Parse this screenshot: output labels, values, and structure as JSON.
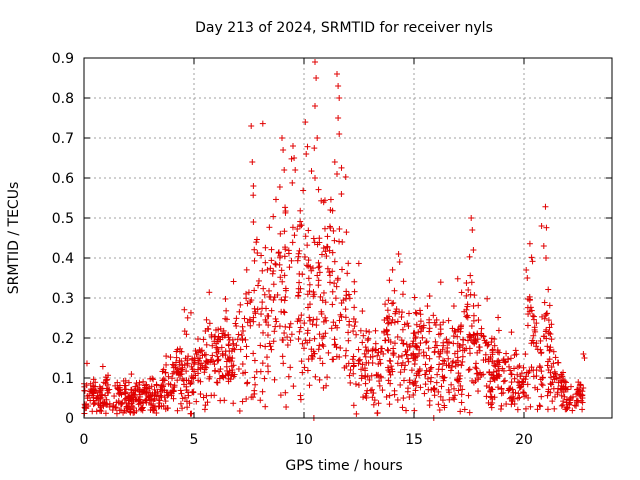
{
  "chart_data": {
    "type": "scatter",
    "title": "Day 213 of 2024, SRMTID for receiver nyls",
    "xlabel": "GPS time / hours",
    "ylabel": "SRMTID / TECUs",
    "xlim": [
      0,
      24
    ],
    "ylim": [
      0,
      0.9
    ],
    "x_ticks": [
      0,
      5,
      10,
      15,
      20
    ],
    "y_ticks": [
      0,
      0.1,
      0.2,
      0.3,
      0.4,
      0.5,
      0.6,
      0.7,
      0.8,
      0.9
    ],
    "x_tick_labels": [
      "0",
      "5",
      "10",
      "15",
      "20"
    ],
    "y_tick_labels": [
      "0",
      "0.1",
      "0.2",
      "0.3",
      "0.4",
      "0.5",
      "0.6",
      "0.7",
      "0.8",
      "0.9"
    ],
    "grid": true,
    "marker": "+",
    "series_color": "#e00000",
    "series": [
      {
        "name": "SRMTID",
        "profile": [
          {
            "x": 0.0,
            "y": 0.05
          },
          {
            "x": 1.0,
            "y": 0.055
          },
          {
            "x": 2.0,
            "y": 0.048
          },
          {
            "x": 3.0,
            "y": 0.055
          },
          {
            "x": 4.0,
            "y": 0.08
          },
          {
            "x": 4.5,
            "y": 0.12
          },
          {
            "x": 5.0,
            "y": 0.1
          },
          {
            "x": 6.0,
            "y": 0.15
          },
          {
            "x": 7.0,
            "y": 0.18
          },
          {
            "x": 7.5,
            "y": 0.22
          },
          {
            "x": 8.0,
            "y": 0.26
          },
          {
            "x": 8.5,
            "y": 0.3
          },
          {
            "x": 9.0,
            "y": 0.31
          },
          {
            "x": 9.5,
            "y": 0.33
          },
          {
            "x": 10.0,
            "y": 0.34
          },
          {
            "x": 10.5,
            "y": 0.33
          },
          {
            "x": 11.0,
            "y": 0.3
          },
          {
            "x": 11.5,
            "y": 0.28
          },
          {
            "x": 12.0,
            "y": 0.25
          },
          {
            "x": 12.5,
            "y": 0.14
          },
          {
            "x": 13.0,
            "y": 0.12
          },
          {
            "x": 13.5,
            "y": 0.12
          },
          {
            "x": 14.0,
            "y": 0.2
          },
          {
            "x": 14.5,
            "y": 0.15
          },
          {
            "x": 15.0,
            "y": 0.16
          },
          {
            "x": 15.5,
            "y": 0.15
          },
          {
            "x": 16.0,
            "y": 0.15
          },
          {
            "x": 16.5,
            "y": 0.13
          },
          {
            "x": 17.0,
            "y": 0.15
          },
          {
            "x": 17.5,
            "y": 0.2
          },
          {
            "x": 18.0,
            "y": 0.16
          },
          {
            "x": 18.5,
            "y": 0.12
          },
          {
            "x": 19.0,
            "y": 0.11
          },
          {
            "x": 19.5,
            "y": 0.09
          },
          {
            "x": 20.0,
            "y": 0.08
          },
          {
            "x": 20.3,
            "y": 0.25
          },
          {
            "x": 20.7,
            "y": 0.1
          },
          {
            "x": 21.0,
            "y": 0.28
          },
          {
            "x": 21.3,
            "y": 0.1
          },
          {
            "x": 22.0,
            "y": 0.05
          },
          {
            "x": 22.7,
            "y": 0.05
          }
        ],
        "peaks": [
          {
            "x": 7.6,
            "y": 0.73
          },
          {
            "x": 7.65,
            "y": 0.64
          },
          {
            "x": 7.7,
            "y": 0.58
          },
          {
            "x": 7.7,
            "y": 0.49
          },
          {
            "x": 9.0,
            "y": 0.7
          },
          {
            "x": 9.05,
            "y": 0.67
          },
          {
            "x": 9.1,
            "y": 0.62
          },
          {
            "x": 9.5,
            "y": 0.68
          },
          {
            "x": 9.55,
            "y": 0.65
          },
          {
            "x": 9.6,
            "y": 0.62
          },
          {
            "x": 10.5,
            "y": 0.89
          },
          {
            "x": 10.55,
            "y": 0.85
          },
          {
            "x": 10.5,
            "y": 0.78
          },
          {
            "x": 10.6,
            "y": 0.7
          },
          {
            "x": 10.5,
            "y": 0.6
          },
          {
            "x": 10.1,
            "y": 0.66
          },
          {
            "x": 11.5,
            "y": 0.86
          },
          {
            "x": 11.55,
            "y": 0.83
          },
          {
            "x": 11.6,
            "y": 0.8
          },
          {
            "x": 11.55,
            "y": 0.75
          },
          {
            "x": 11.6,
            "y": 0.71
          },
          {
            "x": 11.4,
            "y": 0.64
          },
          {
            "x": 11.5,
            "y": 0.61
          },
          {
            "x": 11.7,
            "y": 0.56
          },
          {
            "x": 11.2,
            "y": 0.52
          },
          {
            "x": 14.3,
            "y": 0.41
          },
          {
            "x": 14.35,
            "y": 0.39
          },
          {
            "x": 17.6,
            "y": 0.5
          },
          {
            "x": 17.65,
            "y": 0.47
          },
          {
            "x": 17.7,
            "y": 0.42
          },
          {
            "x": 20.1,
            "y": 0.37
          },
          {
            "x": 20.15,
            "y": 0.35
          },
          {
            "x": 20.8,
            "y": 0.48
          },
          {
            "x": 20.9,
            "y": 0.43
          },
          {
            "x": 21.0,
            "y": 0.4
          },
          {
            "x": 22.7,
            "y": 0.16
          },
          {
            "x": 22.75,
            "y": 0.15
          },
          {
            "x": 10.45,
            "y": 0.0
          },
          {
            "x": 15.9,
            "y": 0.0
          }
        ]
      }
    ]
  }
}
